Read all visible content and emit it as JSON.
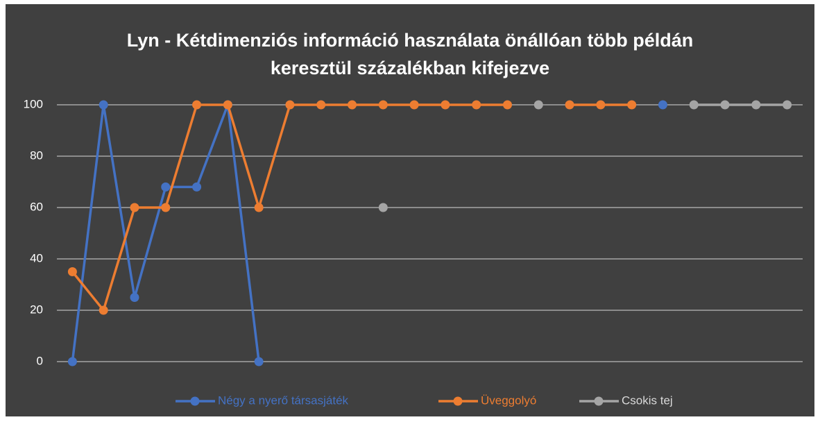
{
  "chart_data": {
    "type": "line",
    "title": "Lyn - Kétdimenziós információ használata önállóan több példán keresztül százalékban kifejezve",
    "categories": [
      null,
      null,
      null,
      null,
      null,
      null,
      null,
      null,
      null,
      null,
      null,
      null,
      null,
      null,
      null,
      null,
      null,
      null,
      null,
      null,
      null,
      null,
      null,
      null
    ],
    "series": [
      {
        "name": "Négy a nyerő társasjáték",
        "color": "#4472c4",
        "values": [
          0,
          100,
          25,
          68,
          68,
          100,
          0,
          null,
          null,
          null,
          null,
          null,
          null,
          null,
          null,
          null,
          null,
          null,
          null,
          100,
          null,
          null,
          null,
          null
        ]
      },
      {
        "name": "Üveggolyó",
        "color": "#ed7d31",
        "values": [
          35,
          20,
          60,
          60,
          100,
          100,
          60,
          100,
          100,
          100,
          100,
          100,
          100,
          100,
          100,
          null,
          100,
          100,
          100,
          null,
          null,
          null,
          null,
          null
        ]
      },
      {
        "name": "Csokis tej",
        "color": "#a5a5a5",
        "values": [
          null,
          null,
          null,
          null,
          null,
          null,
          null,
          null,
          null,
          null,
          60,
          null,
          null,
          null,
          null,
          100,
          null,
          null,
          null,
          null,
          100,
          100,
          100,
          100
        ]
      }
    ],
    "ylim": [
      0,
      100
    ],
    "yticks": [
      0,
      20,
      40,
      60,
      80,
      100
    ],
    "grid": true,
    "legend": "bottom"
  }
}
